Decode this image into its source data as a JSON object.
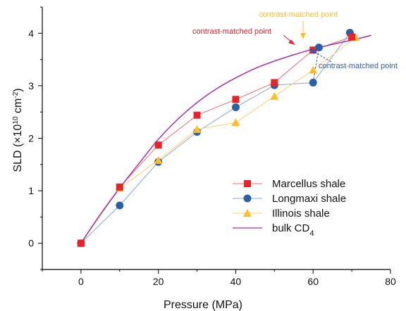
{
  "chart_data": {
    "type": "line",
    "xlabel": "Pressure (MPa)",
    "ylabel": {
      "prefix": "SLD (×10",
      "sup1": "10",
      "mid": " cm",
      "sup2": "-2",
      "suffix": ")"
    },
    "xlim": [
      -10,
      80
    ],
    "ylim": [
      -0.5,
      4.5
    ],
    "xticks": [
      0,
      20,
      40,
      60,
      80
    ],
    "yticks": [
      0,
      1,
      2,
      3,
      4
    ],
    "grid": false,
    "legend_position": "lower-right",
    "series": [
      {
        "name": "Marcellus shale",
        "color": "#e8242a",
        "line_color": "#ee6b6e",
        "marker": "square",
        "x": [
          0,
          10,
          20,
          30,
          40,
          50,
          60,
          70
        ],
        "y": [
          0.0,
          1.07,
          1.87,
          2.44,
          2.74,
          3.06,
          3.68,
          3.93
        ]
      },
      {
        "name": "Longmaxi shale",
        "color": "#2d5fa6",
        "line_color": "#8aa6d0",
        "marker": "circle",
        "x": [
          0,
          10,
          20,
          30,
          40,
          50,
          60,
          69.5
        ],
        "y": [
          0.0,
          0.72,
          1.55,
          2.12,
          2.59,
          3.01,
          3.06,
          4.01
        ]
      },
      {
        "name": "Illinois shale",
        "color": "#ffbd2e",
        "line_color": "#ffcf6e",
        "marker": "triangle",
        "x": [
          0,
          10,
          20,
          30,
          40,
          50,
          60,
          71
        ],
        "y": [
          0.0,
          1.05,
          1.58,
          2.17,
          2.3,
          2.8,
          3.3,
          3.92
        ]
      },
      {
        "name": "bulk CD",
        "name_sub": "4",
        "color": "#a72fa6",
        "line_color": "#a72fa6",
        "marker": "none",
        "x": [
          0,
          5,
          10,
          15,
          20,
          25,
          30,
          35,
          40,
          45,
          50,
          55,
          60,
          65,
          70,
          75
        ],
        "y": [
          0.0,
          0.55,
          1.05,
          1.52,
          1.98,
          2.36,
          2.68,
          2.94,
          3.15,
          3.33,
          3.47,
          3.59,
          3.7,
          3.79,
          3.87,
          3.96
        ]
      }
    ],
    "connectors": [
      {
        "series": "Longmaxi shale",
        "color": "#2d5fa6",
        "x": [
          60,
          61.5
        ],
        "y": [
          3.06,
          3.73
        ]
      }
    ],
    "special_points": [
      {
        "series": "Longmaxi shale",
        "x": 61.5,
        "y": 3.73,
        "color": "#2d5fa6"
      }
    ],
    "annotations": [
      {
        "text": "contrast-matched point",
        "color": "#e8242a"
      },
      {
        "text": "contrast-matched point",
        "color": "#ffbd2e"
      },
      {
        "text": "contrast-matched point",
        "color": "#2d5fa6"
      }
    ]
  }
}
